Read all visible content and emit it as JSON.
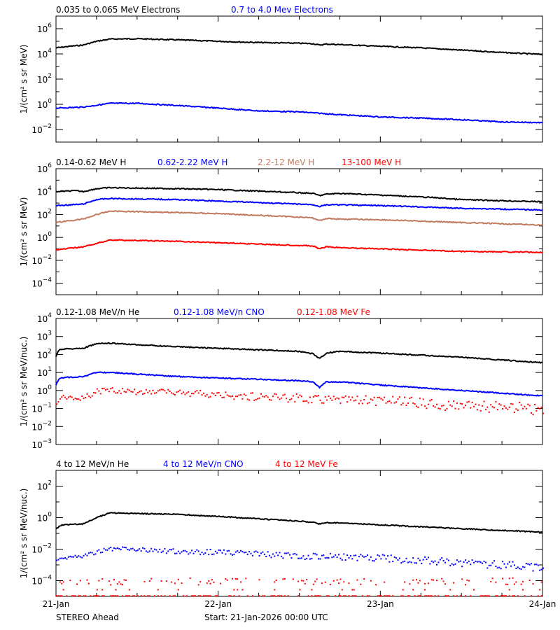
{
  "colors": {
    "black": "#000000",
    "blue": "#0000ff",
    "brown": "#c07a60",
    "red": "#ff0000"
  },
  "footer": {
    "left": "STEREO Ahead",
    "center": "Start: 21-Jan-2026 00:00 UTC"
  },
  "chart_data": [
    {
      "type": "line",
      "ylabel": "1/(cm² s sr MeV)",
      "yscale": "log",
      "ylim_exp": [
        -3,
        7
      ],
      "ytick_exps": [
        -2,
        0,
        2,
        4,
        6
      ],
      "minor_exps": [
        -1,
        1,
        3,
        5
      ],
      "xlim_hours": [
        0,
        72
      ],
      "xtick_labels": [
        "21-Jan",
        "22-Jan",
        "23-Jan",
        "24-Jan"
      ],
      "series": [
        {
          "name": "0.035 to 0.065 MeV Electrons",
          "color": "#000000",
          "style": "line",
          "x": [
            0,
            2,
            4,
            6,
            8,
            12,
            18,
            24,
            30,
            36,
            38,
            39,
            40,
            42,
            48,
            54,
            60,
            66,
            72
          ],
          "y": [
            30000,
            40000,
            50000,
            100000,
            150000,
            160000,
            130000,
            100000,
            80000,
            70000,
            65000,
            50000,
            60000,
            55000,
            40000,
            30000,
            20000,
            13000,
            9000
          ]
        },
        {
          "name": "0.7 to 4.0 Mev Electrons",
          "color": "#0000ff",
          "style": "line",
          "x": [
            0,
            4,
            8,
            12,
            18,
            24,
            30,
            36,
            42,
            48,
            54,
            60,
            66,
            72
          ],
          "y": [
            0.5,
            0.6,
            1.2,
            1.2,
            0.8,
            0.5,
            0.3,
            0.25,
            0.15,
            0.1,
            0.08,
            0.06,
            0.04,
            0.035
          ]
        }
      ]
    },
    {
      "type": "line",
      "ylabel": "1/(cm² s sr MeV)",
      "yscale": "log",
      "ylim_exp": [
        -5,
        6
      ],
      "ytick_exps": [
        -4,
        -2,
        0,
        2,
        4,
        6
      ],
      "minor_exps": [
        -3,
        -1,
        1,
        3,
        5
      ],
      "xlim_hours": [
        0,
        72
      ],
      "series": [
        {
          "name": "0.14-0.62 MeV H",
          "color": "#000000",
          "style": "line",
          "x": [
            0,
            3,
            4,
            6,
            8,
            18,
            24,
            36,
            38,
            39,
            40,
            42,
            48,
            56,
            60,
            72
          ],
          "y": [
            10000,
            12000,
            10000,
            18000,
            22000,
            18000,
            15000,
            8000,
            7000,
            4500,
            6000,
            7000,
            5000,
            3000,
            2000,
            1300
          ]
        },
        {
          "name": "0.62-2.22 MeV H",
          "color": "#0000ff",
          "style": "line",
          "x": [
            0,
            4,
            6,
            8,
            18,
            24,
            36,
            38,
            39,
            40,
            42,
            48,
            60,
            72
          ],
          "y": [
            600,
            800,
            2000,
            2500,
            2000,
            1500,
            800,
            750,
            500,
            700,
            700,
            600,
            350,
            250
          ]
        },
        {
          "name": "2.2-12 MeV H",
          "color": "#c07a60",
          "style": "line",
          "x": [
            0,
            4,
            6,
            8,
            18,
            24,
            36,
            38,
            39,
            40,
            42,
            48,
            60,
            72
          ],
          "y": [
            20,
            40,
            100,
            200,
            150,
            120,
            60,
            50,
            30,
            45,
            40,
            35,
            20,
            12
          ]
        },
        {
          "name": "13-100 MeV H",
          "color": "#ff0000",
          "style": "line",
          "x": [
            0,
            4,
            6,
            8,
            18,
            24,
            36,
            38,
            39,
            40,
            42,
            48,
            60,
            72
          ],
          "y": [
            0.08,
            0.15,
            0.3,
            0.6,
            0.45,
            0.35,
            0.2,
            0.18,
            0.1,
            0.15,
            0.13,
            0.1,
            0.06,
            0.05
          ]
        }
      ]
    },
    {
      "type": "line",
      "ylabel": "1/(cm² s sr MeV/nuc.)",
      "yscale": "log",
      "ylim_exp": [
        -3,
        4
      ],
      "ytick_exps": [
        -3,
        -2,
        -1,
        0,
        1,
        2,
        3,
        4
      ],
      "minor_exps": [],
      "xlim_hours": [
        0,
        72
      ],
      "series": [
        {
          "name": "0.12-1.08 MeV/n He",
          "color": "#000000",
          "style": "line",
          "x": [
            0,
            0.5,
            4,
            6,
            8,
            18,
            24,
            36,
            38,
            39,
            40,
            42,
            48,
            60,
            72
          ],
          "y": [
            80,
            200,
            220,
            400,
            420,
            270,
            220,
            150,
            110,
            60,
            120,
            150,
            120,
            70,
            35
          ]
        },
        {
          "name": "0.12-1.08 MeV/n CNO",
          "color": "#0000ff",
          "style": "line",
          "x": [
            0,
            0.5,
            4,
            6,
            8,
            18,
            24,
            36,
            38,
            39,
            40,
            42,
            48,
            60,
            72
          ],
          "y": [
            2,
            5,
            6,
            10,
            10,
            6,
            5,
            3.5,
            3,
            1.5,
            3,
            3,
            2,
            1,
            0.5
          ]
        },
        {
          "name": "0.12-1.08 MeV Fe",
          "color": "#ff0000",
          "style": "scatter",
          "x": [
            0,
            0.5,
            4,
            6,
            8,
            18,
            24,
            36,
            48,
            60,
            72
          ],
          "y": [
            0.15,
            0.5,
            0.4,
            1.0,
            1.1,
            0.8,
            0.6,
            0.4,
            0.3,
            0.15,
            0.1
          ]
        }
      ]
    },
    {
      "type": "line",
      "ylabel": "1/(cm² s sr MeV/nuc.)",
      "yscale": "log",
      "ylim_exp": [
        -5,
        3
      ],
      "ytick_exps": [
        -4,
        -2,
        0,
        2
      ],
      "minor_exps": [
        -3,
        -1,
        1
      ],
      "xlim_hours": [
        0,
        72
      ],
      "series": [
        {
          "name": "4 to 12 MeV/n He",
          "color": "#000000",
          "style": "line",
          "x": [
            0,
            1,
            4,
            6,
            8,
            18,
            24,
            36,
            38,
            39,
            40,
            48,
            60,
            72
          ],
          "y": [
            0.2,
            0.35,
            0.4,
            1,
            2,
            1.6,
            1.2,
            0.6,
            0.5,
            0.4,
            0.5,
            0.35,
            0.2,
            0.12
          ]
        },
        {
          "name": "4 to 12 MeV/n CNO",
          "color": "#0000ff",
          "style": "scatter",
          "x": [
            0,
            4,
            8,
            18,
            24,
            36,
            48,
            60,
            72
          ],
          "y": [
            0.0025,
            0.004,
            0.012,
            0.008,
            0.007,
            0.004,
            0.003,
            0.0015,
            0.0008
          ]
        },
        {
          "name": "4 to 12 MeV Fe",
          "color": "#ff0000",
          "style": "scatter",
          "x": [
            0,
            72
          ],
          "y": [
            0.0001,
            0.0001
          ],
          "floor_y": 1.2e-05
        }
      ]
    }
  ]
}
